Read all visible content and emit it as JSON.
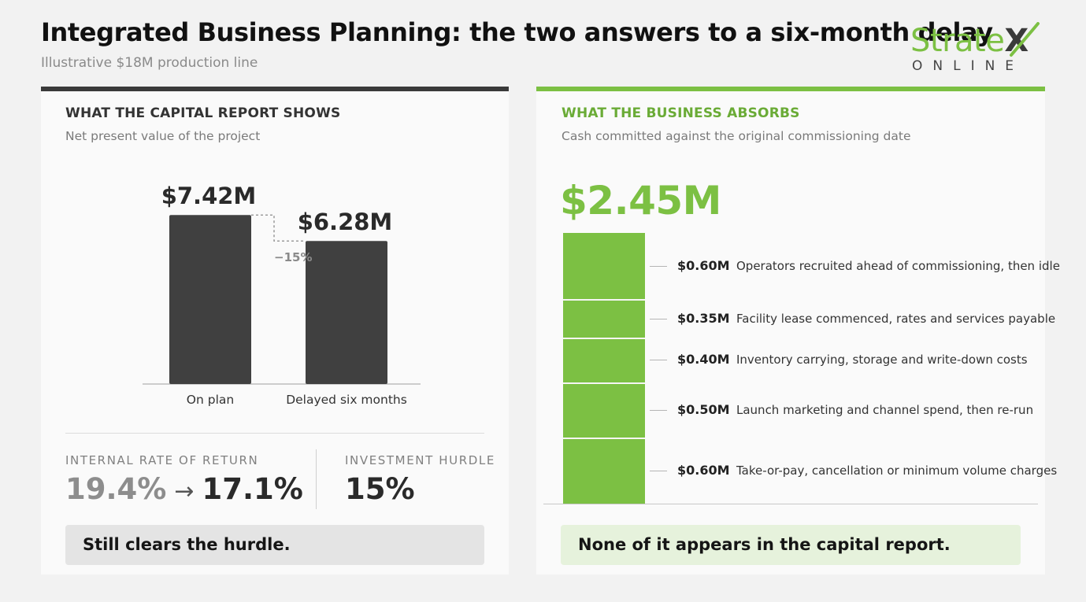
{
  "header": {
    "title": "Integrated Business Planning: the two answers to a six-month delay",
    "subtitle": "Illustrative $18M production line"
  },
  "logo": {
    "main": "Strate",
    "x": "X",
    "sub": "ONLINE"
  },
  "colors": {
    "green": "#7cc043",
    "dark": "#3a3a3a",
    "grey_bar": "#404040"
  },
  "left_panel": {
    "heading": "WHAT THE CAPITAL REPORT SHOWS",
    "subheading": "Net present value of the project",
    "irr_label": "INTERNAL RATE OF RETURN",
    "irr_from": "19.4%",
    "irr_arrow": "→",
    "irr_to": "17.1%",
    "hurdle_label": "INVESTMENT HURDLE",
    "hurdle_value": "15%",
    "callout": "Still clears the hurdle."
  },
  "right_panel": {
    "heading": "WHAT THE BUSINESS ABSORBS",
    "subheading": "Cash committed against the original commissioning date",
    "total": "$2.45M",
    "callout": "None of it appears in the capital report."
  },
  "chart_data": [
    {
      "type": "bar",
      "categories": [
        "On plan",
        "Delayed six months"
      ],
      "values": [
        7.42,
        6.28
      ],
      "value_labels": [
        "$7.42M",
        "$6.28M"
      ],
      "annotation": "−15%",
      "unit": "$M",
      "ylim": [
        0,
        8
      ],
      "axis_visible": false,
      "grid": false
    },
    {
      "type": "bar",
      "stacked": true,
      "total": 2.45,
      "segments": [
        {
          "value": 0.6,
          "label": "$0.60M",
          "description": "Operators recruited ahead of commissioning, then idle"
        },
        {
          "value": 0.35,
          "label": "$0.35M",
          "description": "Facility lease commenced, rates and services payable"
        },
        {
          "value": 0.4,
          "label": "$0.40M",
          "description": "Inventory carrying, storage and write-down costs"
        },
        {
          "value": 0.5,
          "label": "$0.50M",
          "description": "Launch marketing and channel spend, then re-run"
        },
        {
          "value": 0.6,
          "label": "$0.60M",
          "description": "Take-or-pay, cancellation or minimum volume charges"
        }
      ],
      "unit": "$M",
      "grid": false
    }
  ]
}
